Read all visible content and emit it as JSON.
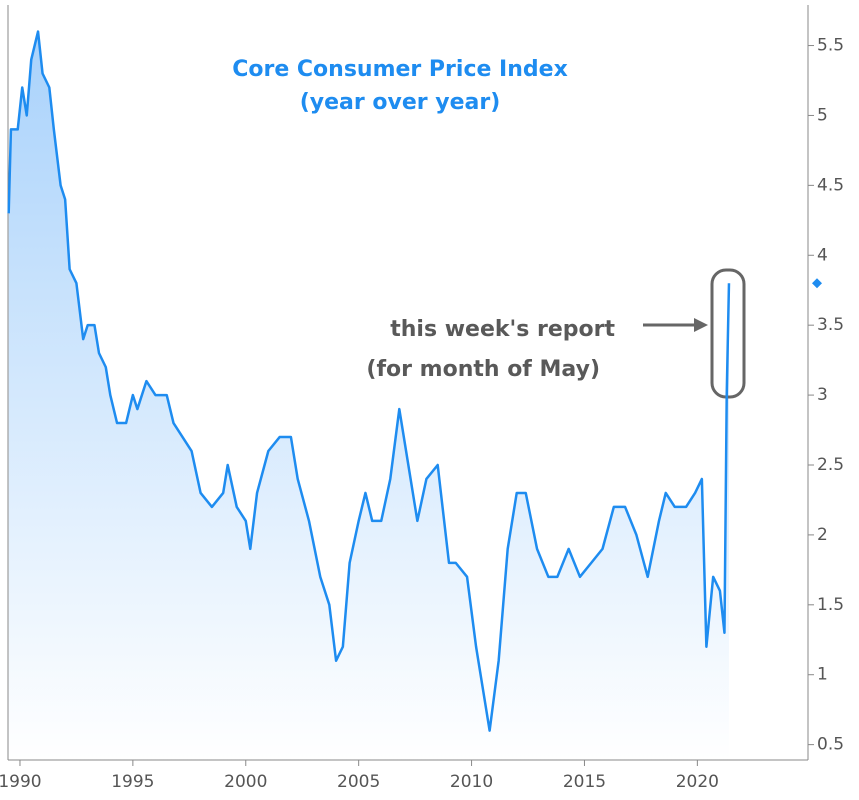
{
  "chart_data": {
    "type": "area",
    "title": "Core Consumer Price Index",
    "subtitle": "(year over year)",
    "annotation": [
      "this week's report",
      "(for month of May)"
    ],
    "color": "#1e8cf0",
    "x": [
      1989.5,
      1989.6,
      1989.9,
      1990.1,
      1990.3,
      1990.5,
      1990.8,
      1991.0,
      1991.3,
      1991.5,
      1991.8,
      1992.0,
      1992.2,
      1992.5,
      1992.8,
      1993.0,
      1993.3,
      1993.5,
      1993.8,
      1994.0,
      1994.3,
      1994.7,
      1995.0,
      1995.2,
      1995.6,
      1996.0,
      1996.5,
      1996.8,
      1997.2,
      1997.6,
      1998.0,
      1998.5,
      1999.0,
      1999.2,
      1999.6,
      2000.0,
      2000.2,
      2000.5,
      2001.0,
      2001.5,
      2002.0,
      2002.3,
      2002.8,
      2003.3,
      2003.7,
      2004.0,
      2004.3,
      2004.6,
      2005.0,
      2005.3,
      2005.6,
      2006.0,
      2006.4,
      2006.8,
      2007.2,
      2007.6,
      2008.0,
      2008.5,
      2009.0,
      2009.3,
      2009.8,
      2010.2,
      2010.5,
      2010.8,
      2011.2,
      2011.6,
      2012.0,
      2012.4,
      2012.9,
      2013.4,
      2013.8,
      2014.3,
      2014.8,
      2015.3,
      2015.8,
      2016.3,
      2016.8,
      2017.3,
      2017.8,
      2018.3,
      2018.6,
      2019.0,
      2019.5,
      2019.9,
      2020.2,
      2020.4,
      2020.7,
      2021.0,
      2021.2,
      2021.3,
      2021.4
    ],
    "values": [
      4.3,
      4.9,
      4.9,
      5.2,
      5.0,
      5.4,
      5.6,
      5.3,
      5.2,
      4.9,
      4.5,
      4.4,
      3.9,
      3.8,
      3.4,
      3.5,
      3.5,
      3.3,
      3.2,
      3.0,
      2.8,
      2.8,
      3.0,
      2.9,
      3.1,
      3.0,
      3.0,
      2.8,
      2.7,
      2.6,
      2.3,
      2.2,
      2.3,
      2.5,
      2.2,
      2.1,
      1.9,
      2.3,
      2.6,
      2.7,
      2.7,
      2.4,
      2.1,
      1.7,
      1.5,
      1.1,
      1.2,
      1.8,
      2.1,
      2.3,
      2.1,
      2.1,
      2.4,
      2.9,
      2.5,
      2.1,
      2.4,
      2.5,
      1.8,
      1.8,
      1.7,
      1.2,
      0.9,
      0.6,
      1.1,
      1.9,
      2.3,
      2.3,
      1.9,
      1.7,
      1.7,
      1.9,
      1.7,
      1.8,
      1.9,
      2.2,
      2.2,
      2.0,
      1.7,
      2.1,
      2.3,
      2.2,
      2.2,
      2.3,
      2.4,
      1.2,
      1.7,
      1.6,
      1.3,
      3.0,
      3.8
    ],
    "xlim": [
      1989.47,
      2024.9
    ],
    "ylim": [
      0.39,
      5.79
    ],
    "xticks": [
      1990,
      1995,
      2000,
      2005,
      2010,
      2015,
      2020
    ],
    "yticks": [
      5.5,
      5,
      4.5,
      4,
      3.5,
      3,
      2.5,
      2,
      1.5,
      1,
      0.5
    ]
  }
}
